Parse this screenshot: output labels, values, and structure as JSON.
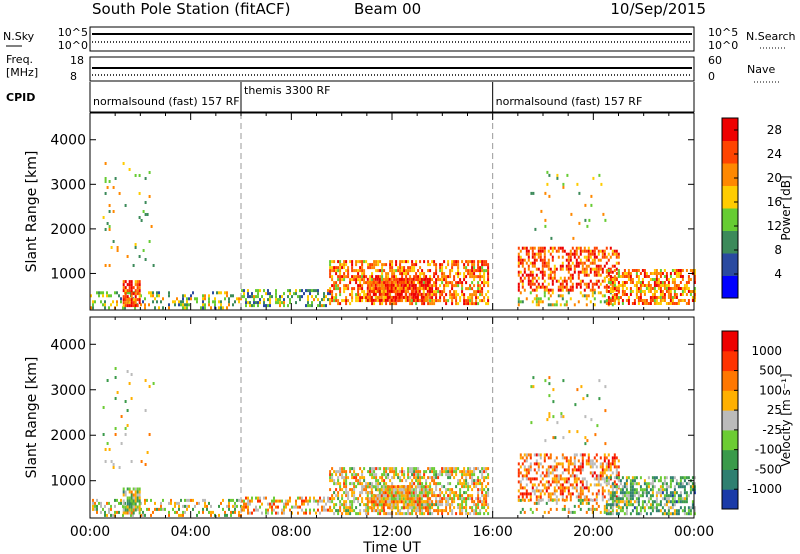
{
  "header": {
    "station": "South Pole Station (fitACF)",
    "beam": "Beam 00",
    "date": "10/Sep/2015"
  },
  "aux_panels": {
    "nsky_label": "N.Sky",
    "nsky_ticks": [
      "10^5",
      "10^0"
    ],
    "nsearch_label": "N.Search",
    "nsearch_ticks": [
      "10^5",
      "10^0"
    ],
    "freq_label": [
      "Freq.",
      "[MHz]"
    ],
    "freq_ticks": [
      "18",
      "8"
    ],
    "nave_label": "Nave",
    "nave_ticks": [
      "60",
      "0"
    ],
    "cpid_label": "CPID",
    "cpid_segments": [
      {
        "label": "normalsound (fast) 157 RF",
        "start_hour": 0,
        "end_hour": 6
      },
      {
        "label": "themis 3300 RF",
        "start_hour": 6,
        "end_hour": 16
      },
      {
        "label": "normalsound (fast) 157 RF",
        "start_hour": 16,
        "end_hour": 24
      }
    ]
  },
  "x_axis": {
    "label": "Time UT",
    "tick_labels": [
      "00:00",
      "04:00",
      "08:00",
      "12:00",
      "16:00",
      "20:00",
      "00:00"
    ]
  },
  "chart_data": [
    {
      "type": "heatmap",
      "title": "Power",
      "xlabel": "Time UT",
      "ylabel": "Slant Range [km]",
      "xlim_hours": [
        0,
        24
      ],
      "ylim": [
        180,
        4600
      ],
      "yticks": [
        1000,
        2000,
        3000,
        4000
      ],
      "colorbar": {
        "label": "Power [dB]",
        "ticks": [
          "4",
          "8",
          "12",
          "16",
          "20",
          "24",
          "28"
        ],
        "range": [
          0,
          30
        ],
        "colors": [
          "#0000ff",
          "#2a4aa0",
          "#3c8a5a",
          "#66cc33",
          "#ffcc00",
          "#ff8800",
          "#ff4400",
          "#ee0000"
        ]
      },
      "echo_regions": [
        {
          "t0": 0.0,
          "t1": 6.0,
          "r0": 250,
          "r1": 600,
          "density": 0.35,
          "level": 0.45
        },
        {
          "t0": 1.3,
          "t1": 2.0,
          "r0": 300,
          "r1": 850,
          "density": 0.8,
          "level": 0.8
        },
        {
          "t0": 6.0,
          "t1": 9.5,
          "r0": 300,
          "r1": 650,
          "density": 0.45,
          "level": 0.4
        },
        {
          "t0": 9.5,
          "t1": 15.8,
          "r0": 300,
          "r1": 1300,
          "density": 0.6,
          "level": 0.7
        },
        {
          "t0": 11.0,
          "t1": 13.5,
          "r0": 400,
          "r1": 900,
          "density": 0.8,
          "level": 0.85
        },
        {
          "t0": 17.0,
          "t1": 21.0,
          "r0": 600,
          "r1": 1600,
          "density": 0.5,
          "level": 0.8
        },
        {
          "t0": 17.0,
          "t1": 21.0,
          "r0": 300,
          "r1": 600,
          "density": 0.3,
          "level": 0.5
        },
        {
          "t0": 20.5,
          "t1": 24.0,
          "r0": 300,
          "r1": 1100,
          "density": 0.6,
          "level": 0.7
        },
        {
          "t0": 0.5,
          "t1": 2.5,
          "r0": 1200,
          "r1": 3500,
          "density": 0.04,
          "level": 0.5
        },
        {
          "t0": 17.5,
          "t1": 20.5,
          "r0": 1800,
          "r1": 3300,
          "density": 0.05,
          "level": 0.5
        }
      ]
    },
    {
      "type": "heatmap",
      "title": "Velocity",
      "xlabel": "Time UT",
      "ylabel": "Slant Range [km]",
      "xlim_hours": [
        0,
        24
      ],
      "ylim": [
        180,
        4600
      ],
      "yticks": [
        1000,
        2000,
        3000,
        4000
      ],
      "colorbar": {
        "label": "Velocity [m s⁻¹]",
        "ticks": [
          "1000",
          "500",
          "100",
          "25",
          "-25",
          "-100",
          "-500",
          "-1000"
        ],
        "range": [
          -1000,
          1000
        ],
        "colors": [
          "#1a3aa8",
          "#2f7f70",
          "#3a9a4a",
          "#6ccc33",
          "#bbbbbb",
          "#ffb000",
          "#ff7700",
          "#ff3300",
          "#ee0000"
        ]
      },
      "echo_regions": [
        {
          "t0": 0.0,
          "t1": 6.0,
          "r0": 250,
          "r1": 600,
          "density": 0.35,
          "level": 0.5
        },
        {
          "t0": 1.3,
          "t1": 2.0,
          "r0": 300,
          "r1": 850,
          "density": 0.8,
          "level": 0.45
        },
        {
          "t0": 6.0,
          "t1": 9.5,
          "r0": 300,
          "r1": 650,
          "density": 0.45,
          "level": 0.6
        },
        {
          "t0": 9.5,
          "t1": 15.8,
          "r0": 300,
          "r1": 1300,
          "density": 0.6,
          "level": 0.55
        },
        {
          "t0": 11.0,
          "t1": 13.5,
          "r0": 400,
          "r1": 900,
          "density": 0.8,
          "level": 0.6
        },
        {
          "t0": 17.0,
          "t1": 21.0,
          "r0": 600,
          "r1": 1600,
          "density": 0.5,
          "level": 0.7
        },
        {
          "t0": 17.0,
          "t1": 21.0,
          "r0": 300,
          "r1": 600,
          "density": 0.3,
          "level": 0.5
        },
        {
          "t0": 20.5,
          "t1": 24.0,
          "r0": 300,
          "r1": 1100,
          "density": 0.6,
          "level": 0.35
        },
        {
          "t0": 0.5,
          "t1": 2.5,
          "r0": 1200,
          "r1": 3500,
          "density": 0.04,
          "level": 0.5
        },
        {
          "t0": 17.5,
          "t1": 20.5,
          "r0": 1800,
          "r1": 3300,
          "density": 0.05,
          "level": 0.5
        }
      ]
    }
  ]
}
